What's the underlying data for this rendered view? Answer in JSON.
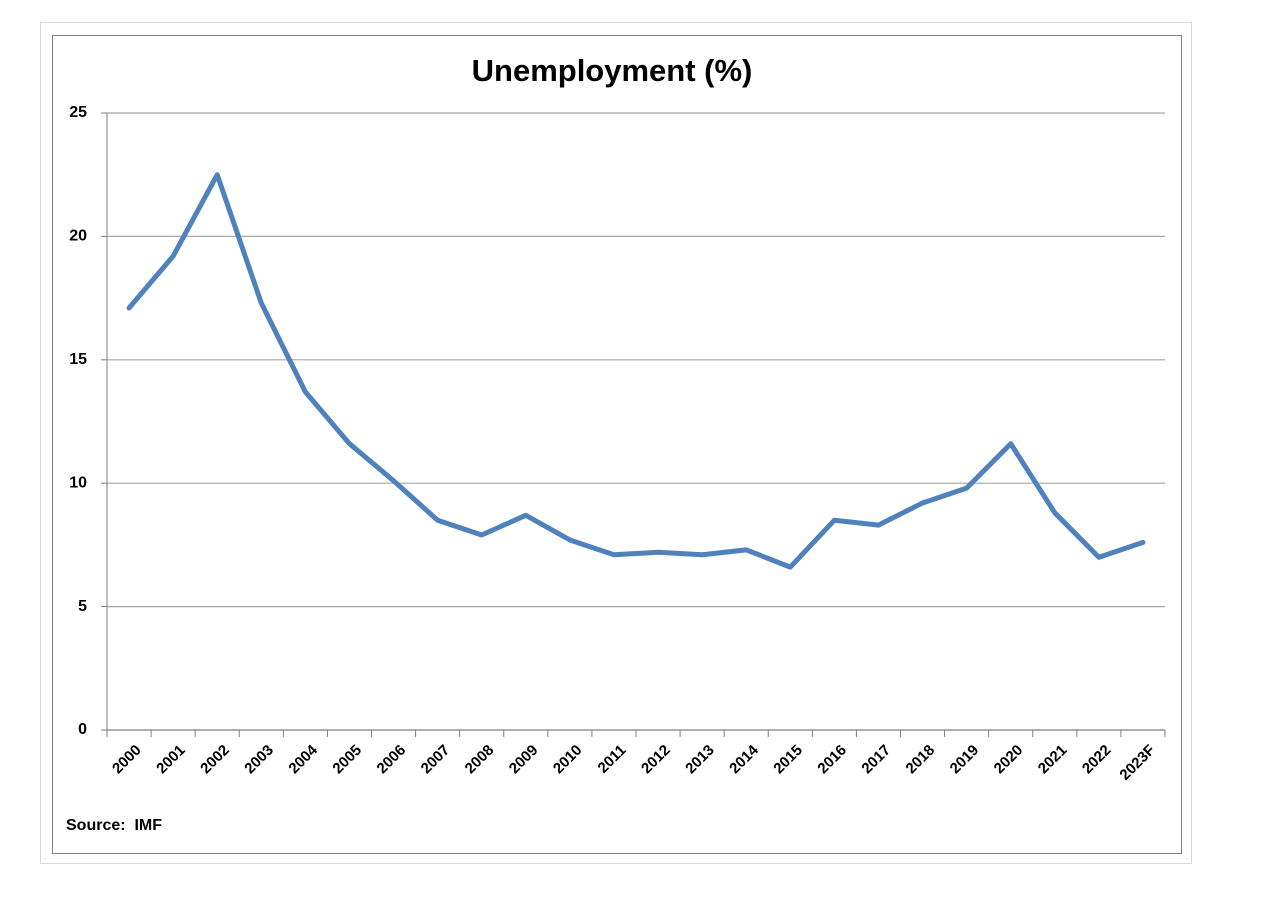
{
  "chart_data": {
    "type": "line",
    "title": "Unemployment (%)",
    "categories": [
      "2000",
      "2001",
      "2002",
      "2003",
      "2004",
      "2005",
      "2006",
      "2007",
      "2008",
      "2009",
      "2010",
      "2011",
      "2012",
      "2013",
      "2014",
      "2015",
      "2016",
      "2017",
      "2018",
      "2019",
      "2020",
      "2021",
      "2022",
      "2023F"
    ],
    "values": [
      17.1,
      19.2,
      22.5,
      17.3,
      13.7,
      11.6,
      10.1,
      8.5,
      7.9,
      8.7,
      7.7,
      7.1,
      7.2,
      7.1,
      7.3,
      6.6,
      8.5,
      8.3,
      9.2,
      9.8,
      11.6,
      8.8,
      7.0,
      7.6
    ],
    "color": "#4f81bd",
    "ylim": [
      0,
      25
    ],
    "yticks": [
      0,
      5,
      10,
      15,
      20,
      25
    ],
    "grid": true,
    "source": "Source:  IMF"
  }
}
